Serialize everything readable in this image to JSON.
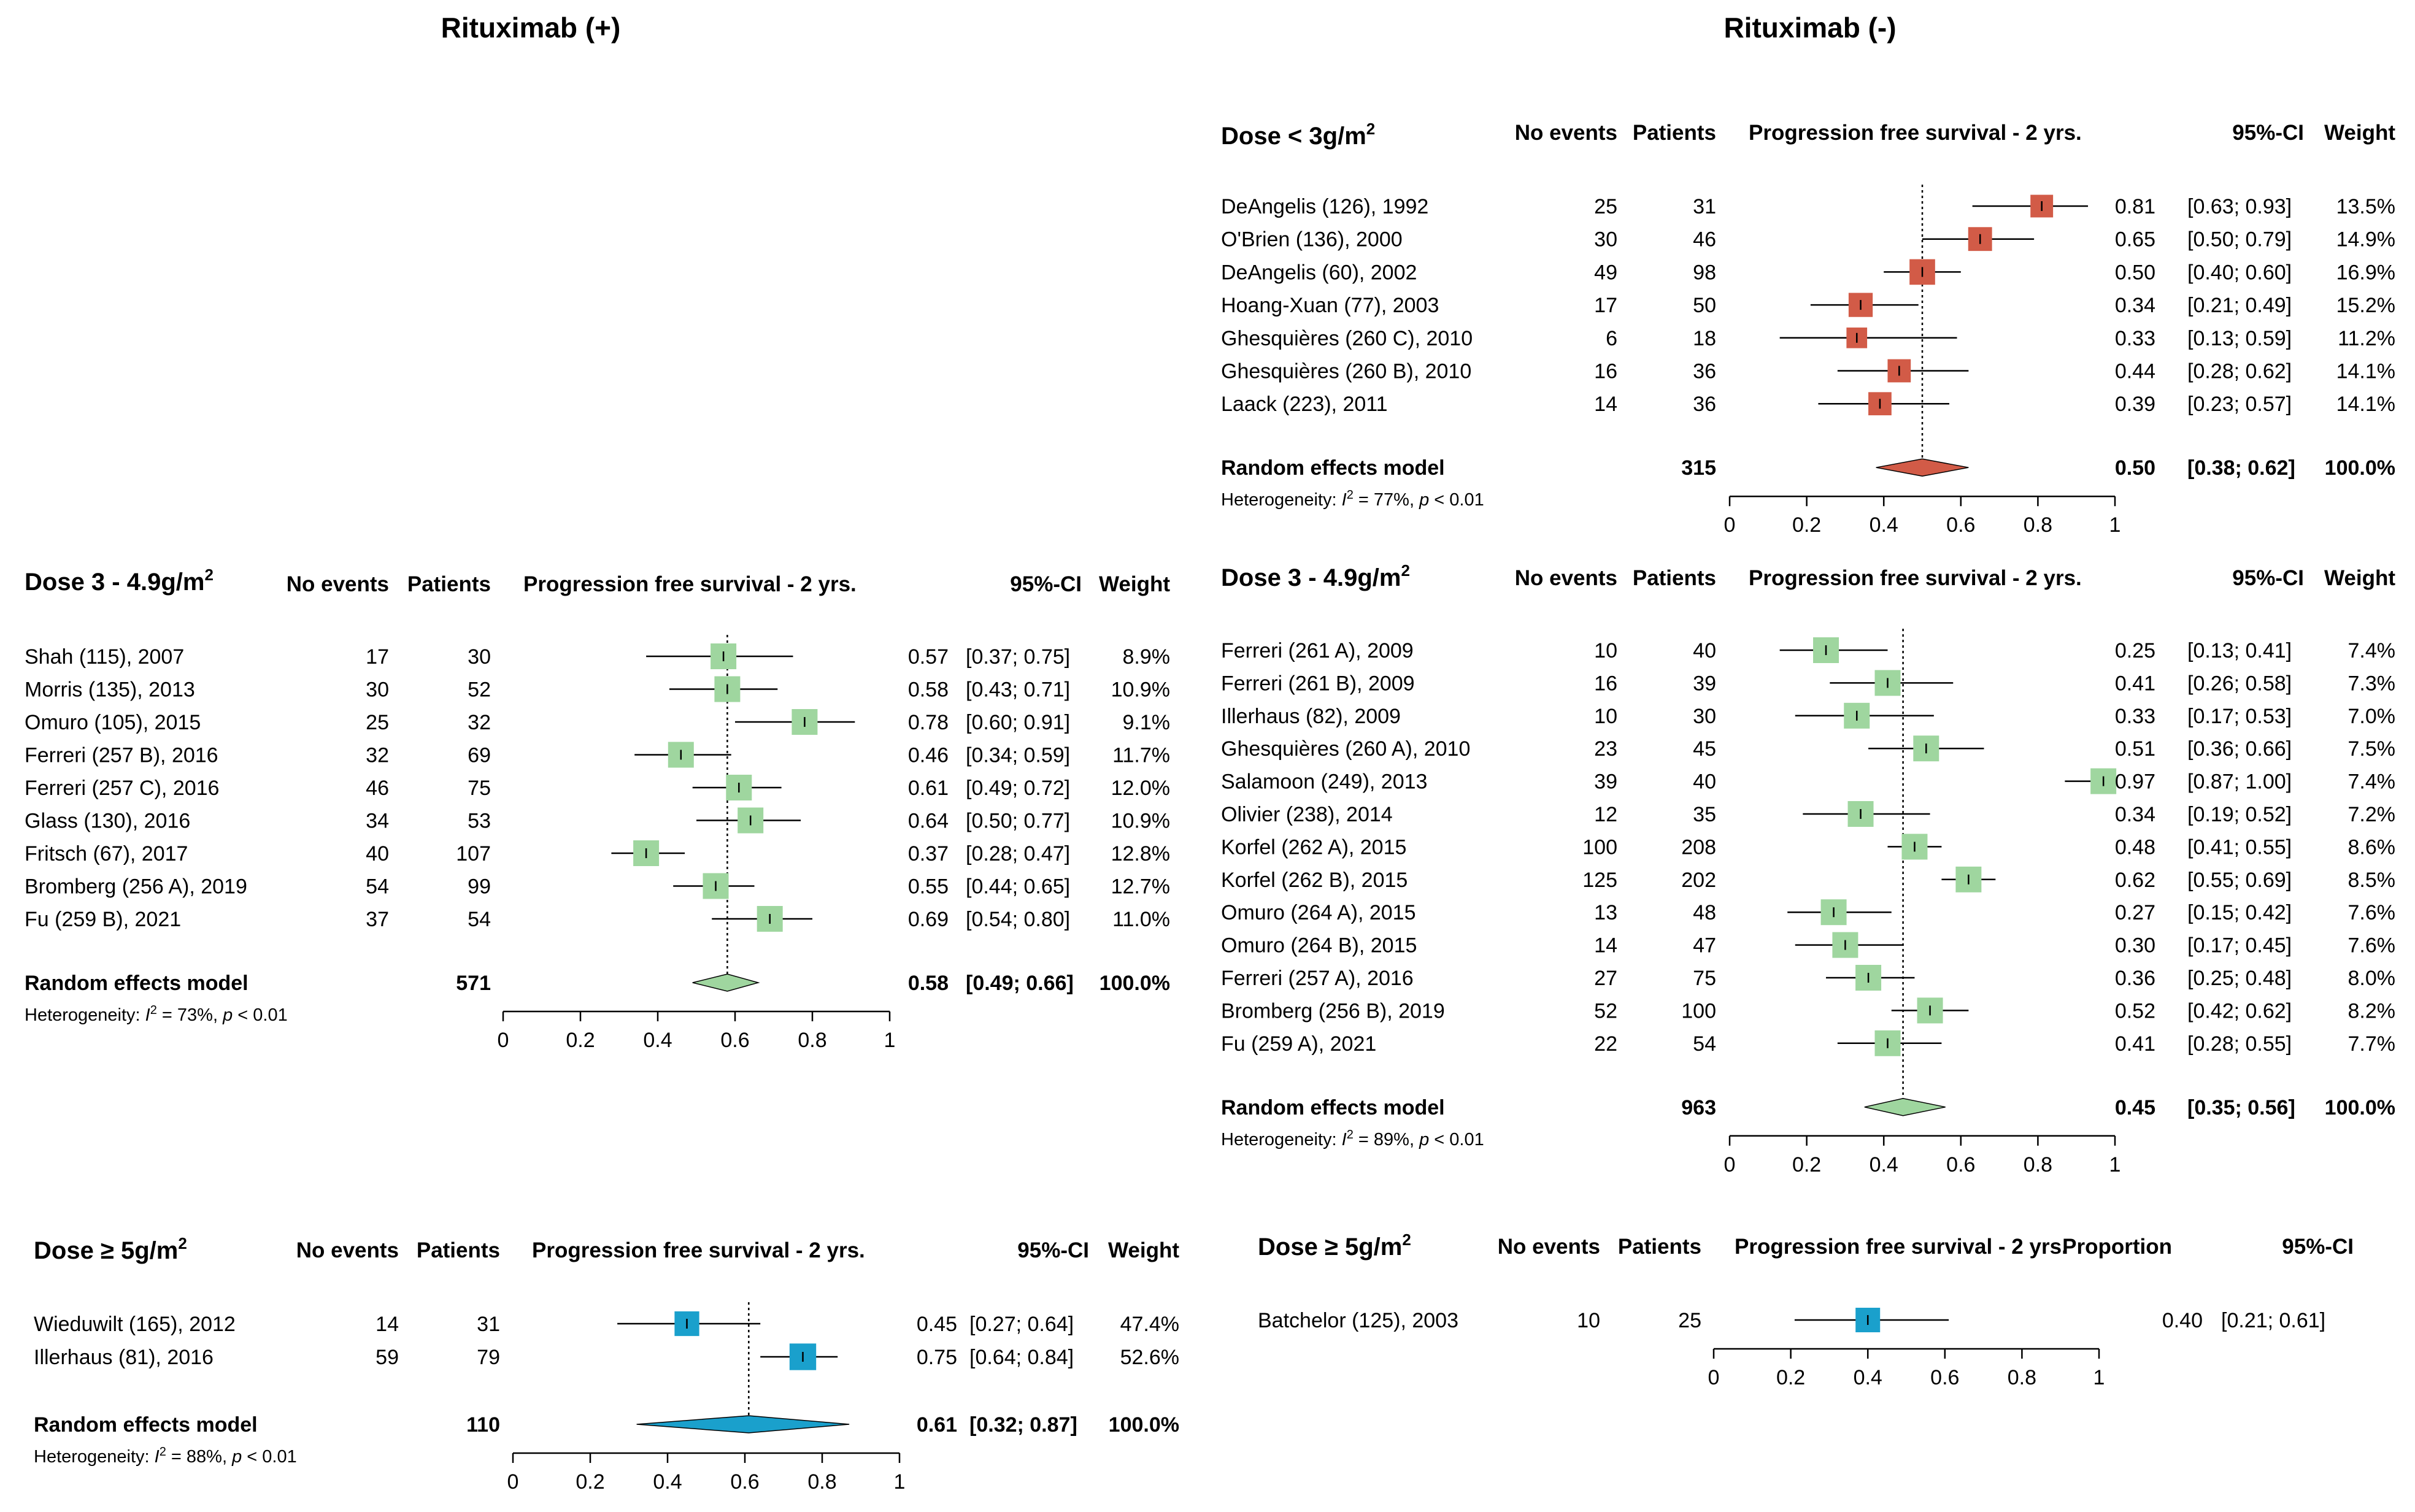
{
  "titles": {
    "left": "Rituximab (+)",
    "right": "Rituximab (-)"
  },
  "colors": {
    "red": "#d25b47",
    "green": "#9fd69f",
    "blue": "#1aa0cc",
    "red_diamond": "#d25b47",
    "green_diamond": "#9fd69f",
    "blue_diamond": "#1aa0cc"
  },
  "chart_data": [
    {
      "id": "plot-r-minus-low",
      "type": "forest",
      "title": "Dose < 3g/m",
      "title_sup": "2",
      "columns": {
        "events": "No events",
        "patients": "Patients",
        "plot": "Progression free survival - 2 yrs.",
        "ci": "95%-CI",
        "weight": "Weight"
      },
      "color": "red",
      "summary_line": 0.5,
      "xlim": [
        0,
        1
      ],
      "ticks": [
        "0",
        "0.2",
        "0.4",
        "0.6",
        "0.8",
        "1"
      ],
      "studies": [
        {
          "label": "DeAngelis (126), 1992",
          "events": "25",
          "patients": "31",
          "est": 0.81,
          "lo": 0.63,
          "hi": 0.93,
          "est_text": "0.81",
          "ci_text": "[0.63; 0.93]",
          "weight_text": "13.5%",
          "w": 13.5
        },
        {
          "label": "O'Brien (136), 2000",
          "events": "30",
          "patients": "46",
          "est": 0.65,
          "lo": 0.5,
          "hi": 0.79,
          "est_text": "0.65",
          "ci_text": "[0.50; 0.79]",
          "weight_text": "14.9%",
          "w": 14.9
        },
        {
          "label": "DeAngelis (60), 2002",
          "events": "49",
          "patients": "98",
          "est": 0.5,
          "lo": 0.4,
          "hi": 0.6,
          "est_text": "0.50",
          "ci_text": "[0.40; 0.60]",
          "weight_text": "16.9%",
          "w": 16.9
        },
        {
          "label": "Hoang-Xuan (77), 2003",
          "events": "17",
          "patients": "50",
          "est": 0.34,
          "lo": 0.21,
          "hi": 0.49,
          "est_text": "0.34",
          "ci_text": "[0.21; 0.49]",
          "weight_text": "15.2%",
          "w": 15.2
        },
        {
          "label": "Ghesquières (260 C), 2010",
          "events": "6",
          "patients": "18",
          "est": 0.33,
          "lo": 0.13,
          "hi": 0.59,
          "est_text": "0.33",
          "ci_text": "[0.13; 0.59]",
          "weight_text": "11.2%",
          "w": 11.2
        },
        {
          "label": "Ghesquières (260 B), 2010",
          "events": "16",
          "patients": "36",
          "est": 0.44,
          "lo": 0.28,
          "hi": 0.62,
          "est_text": "0.44",
          "ci_text": "[0.28; 0.62]",
          "weight_text": "14.1%",
          "w": 14.1
        },
        {
          "label": "Laack (223), 2011",
          "events": "14",
          "patients": "36",
          "est": 0.39,
          "lo": 0.23,
          "hi": 0.57,
          "est_text": "0.39",
          "ci_text": "[0.23; 0.57]",
          "weight_text": "14.1%",
          "w": 14.1
        }
      ],
      "model": {
        "label": "Random effects model",
        "patients": "315",
        "est": 0.5,
        "lo": 0.38,
        "hi": 0.62,
        "est_text": "0.50",
        "ci_text": "[0.38; 0.62]",
        "weight_text": "100.0%"
      },
      "heterogeneity": {
        "prefix": "Heterogeneity: ",
        "i2": "I",
        "sup": "2",
        "rest": " = 77%, ",
        "p": "p",
        "prest": " < 0.01"
      }
    },
    {
      "id": "plot-r-plus-mid",
      "type": "forest",
      "title": "Dose 3 - 4.9g/m",
      "title_sup": "2",
      "columns": {
        "events": "No events",
        "patients": "Patients",
        "plot": "Progression free survival - 2 yrs.",
        "ci": "95%-CI",
        "weight": "Weight"
      },
      "color": "green",
      "summary_line": 0.58,
      "xlim": [
        0,
        1
      ],
      "ticks": [
        "0",
        "0.2",
        "0.4",
        "0.6",
        "0.8",
        "1"
      ],
      "studies": [
        {
          "label": "Shah (115), 2007",
          "events": "17",
          "patients": "30",
          "est": 0.57,
          "lo": 0.37,
          "hi": 0.75,
          "est_text": "0.57",
          "ci_text": "[0.37; 0.75]",
          "weight_text": "8.9%",
          "w": 8.9
        },
        {
          "label": "Morris (135), 2013",
          "events": "30",
          "patients": "52",
          "est": 0.58,
          "lo": 0.43,
          "hi": 0.71,
          "est_text": "0.58",
          "ci_text": "[0.43; 0.71]",
          "weight_text": "10.9%",
          "w": 10.9
        },
        {
          "label": "Omuro (105), 2015",
          "events": "25",
          "patients": "32",
          "est": 0.78,
          "lo": 0.6,
          "hi": 0.91,
          "est_text": "0.78",
          "ci_text": "[0.60; 0.91]",
          "weight_text": "9.1%",
          "w": 9.1
        },
        {
          "label": "Ferreri (257 B), 2016",
          "events": "32",
          "patients": "69",
          "est": 0.46,
          "lo": 0.34,
          "hi": 0.59,
          "est_text": "0.46",
          "ci_text": "[0.34; 0.59]",
          "weight_text": "11.7%",
          "w": 11.7
        },
        {
          "label": "Ferreri (257 C), 2016",
          "events": "46",
          "patients": "75",
          "est": 0.61,
          "lo": 0.49,
          "hi": 0.72,
          "est_text": "0.61",
          "ci_text": "[0.49; 0.72]",
          "weight_text": "12.0%",
          "w": 12.0
        },
        {
          "label": "Glass (130), 2016",
          "events": "34",
          "patients": "53",
          "est": 0.64,
          "lo": 0.5,
          "hi": 0.77,
          "est_text": "0.64",
          "ci_text": "[0.50; 0.77]",
          "weight_text": "10.9%",
          "w": 10.9
        },
        {
          "label": "Fritsch (67), 2017",
          "events": "40",
          "patients": "107",
          "est": 0.37,
          "lo": 0.28,
          "hi": 0.47,
          "est_text": "0.37",
          "ci_text": "[0.28; 0.47]",
          "weight_text": "12.8%",
          "w": 12.8
        },
        {
          "label": "Bromberg (256 A), 2019",
          "events": "54",
          "patients": "99",
          "est": 0.55,
          "lo": 0.44,
          "hi": 0.65,
          "est_text": "0.55",
          "ci_text": "[0.44; 0.65]",
          "weight_text": "12.7%",
          "w": 12.7
        },
        {
          "label": "Fu (259  B), 2021",
          "events": "37",
          "patients": "54",
          "est": 0.69,
          "lo": 0.54,
          "hi": 0.8,
          "est_text": "0.69",
          "ci_text": "[0.54; 0.80]",
          "weight_text": "11.0%",
          "w": 11.0
        }
      ],
      "model": {
        "label": "Random effects model",
        "patients": "571",
        "est": 0.58,
        "lo": 0.49,
        "hi": 0.66,
        "est_text": "0.58",
        "ci_text": "[0.49; 0.66]",
        "weight_text": "100.0%"
      },
      "heterogeneity": {
        "prefix": "Heterogeneity: ",
        "i2": "I",
        "sup": "2",
        "rest": " = 73%, ",
        "p": "p",
        "prest": " < 0.01"
      }
    },
    {
      "id": "plot-r-minus-mid",
      "type": "forest",
      "title": "Dose 3 - 4.9g/m",
      "title_sup": "2",
      "columns": {
        "events": "No events",
        "patients": "Patients",
        "plot": "Progression free survival - 2 yrs.",
        "ci": "95%-CI",
        "weight": "Weight"
      },
      "color": "green",
      "summary_line": 0.45,
      "xlim": [
        0,
        1
      ],
      "ticks": [
        "0",
        "0.2",
        "0.4",
        "0.6",
        "0.8",
        "1"
      ],
      "studies": [
        {
          "label": "Ferreri (261 A), 2009",
          "events": "10",
          "patients": "40",
          "est": 0.25,
          "lo": 0.13,
          "hi": 0.41,
          "est_text": "0.25",
          "ci_text": "[0.13; 0.41]",
          "weight_text": "7.4%",
          "w": 7.4
        },
        {
          "label": "Ferreri (261 B), 2009",
          "events": "16",
          "patients": "39",
          "est": 0.41,
          "lo": 0.26,
          "hi": 0.58,
          "est_text": "0.41",
          "ci_text": "[0.26; 0.58]",
          "weight_text": "7.3%",
          "w": 7.3
        },
        {
          "label": "Illerhaus (82), 2009",
          "events": "10",
          "patients": "30",
          "est": 0.33,
          "lo": 0.17,
          "hi": 0.53,
          "est_text": "0.33",
          "ci_text": "[0.17; 0.53]",
          "weight_text": "7.0%",
          "w": 7.0
        },
        {
          "label": "Ghesquières (260 A), 2010",
          "events": "23",
          "patients": "45",
          "est": 0.51,
          "lo": 0.36,
          "hi": 0.66,
          "est_text": "0.51",
          "ci_text": "[0.36; 0.66]",
          "weight_text": "7.5%",
          "w": 7.5
        },
        {
          "label": "Salamoon (249), 2013",
          "events": "39",
          "patients": "40",
          "est": 0.97,
          "lo": 0.87,
          "hi": 1.0,
          "est_text": "0.97",
          "ci_text": "[0.87; 1.00]",
          "weight_text": "7.4%",
          "w": 7.4
        },
        {
          "label": "Olivier (238), 2014",
          "events": "12",
          "patients": "35",
          "est": 0.34,
          "lo": 0.19,
          "hi": 0.52,
          "est_text": "0.34",
          "ci_text": "[0.19; 0.52]",
          "weight_text": "7.2%",
          "w": 7.2
        },
        {
          "label": "Korfel (262 A), 2015",
          "events": "100",
          "patients": "208",
          "est": 0.48,
          "lo": 0.41,
          "hi": 0.55,
          "est_text": "0.48",
          "ci_text": "[0.41; 0.55]",
          "weight_text": "8.6%",
          "w": 8.6
        },
        {
          "label": "Korfel (262 B), 2015",
          "events": "125",
          "patients": "202",
          "est": 0.62,
          "lo": 0.55,
          "hi": 0.69,
          "est_text": "0.62",
          "ci_text": "[0.55; 0.69]",
          "weight_text": "8.5%",
          "w": 8.5
        },
        {
          "label": "Omuro (264 A), 2015",
          "events": "13",
          "patients": "48",
          "est": 0.27,
          "lo": 0.15,
          "hi": 0.42,
          "est_text": "0.27",
          "ci_text": "[0.15; 0.42]",
          "weight_text": "7.6%",
          "w": 7.6
        },
        {
          "label": "Omuro (264 B), 2015",
          "events": "14",
          "patients": "47",
          "est": 0.3,
          "lo": 0.17,
          "hi": 0.45,
          "est_text": "0.30",
          "ci_text": "[0.17; 0.45]",
          "weight_text": "7.6%",
          "w": 7.6
        },
        {
          "label": "Ferreri (257 A), 2016",
          "events": "27",
          "patients": "75",
          "est": 0.36,
          "lo": 0.25,
          "hi": 0.48,
          "est_text": "0.36",
          "ci_text": "[0.25; 0.48]",
          "weight_text": "8.0%",
          "w": 8.0
        },
        {
          "label": "Bromberg (256 B), 2019",
          "events": "52",
          "patients": "100",
          "est": 0.52,
          "lo": 0.42,
          "hi": 0.62,
          "est_text": "0.52",
          "ci_text": "[0.42; 0.62]",
          "weight_text": "8.2%",
          "w": 8.2
        },
        {
          "label": "Fu (259 A), 2021",
          "events": "22",
          "patients": "54",
          "est": 0.41,
          "lo": 0.28,
          "hi": 0.55,
          "est_text": "0.41",
          "ci_text": "[0.28; 0.55]",
          "weight_text": "7.7%",
          "w": 7.7
        }
      ],
      "model": {
        "label": "Random effects model",
        "patients": "963",
        "est": 0.45,
        "lo": 0.35,
        "hi": 0.56,
        "est_text": "0.45",
        "ci_text": "[0.35; 0.56]",
        "weight_text": "100.0%"
      },
      "heterogeneity": {
        "prefix": "Heterogeneity: ",
        "i2": "I",
        "sup": "2",
        "rest": " = 89%, ",
        "p": "p",
        "prest": " < 0.01"
      }
    },
    {
      "id": "plot-r-plus-high",
      "type": "forest",
      "title": "Dose ≥ 5g/m",
      "title_sup": "2",
      "columns": {
        "events": "No events",
        "patients": "Patients",
        "plot": "Progression free survival - 2 yrs.",
        "ci": "95%-CI",
        "weight": "Weight"
      },
      "color": "blue",
      "summary_line": 0.61,
      "xlim": [
        0,
        1
      ],
      "ticks": [
        "0",
        "0.2",
        "0.4",
        "0.6",
        "0.8",
        "1"
      ],
      "studies": [
        {
          "label": "Wieduwilt (165), 2012",
          "events": "14",
          "patients": "31",
          "est": 0.45,
          "lo": 0.27,
          "hi": 0.64,
          "est_text": "0.45",
          "ci_text": "[0.27; 0.64]",
          "weight_text": "47.4%",
          "w": 47.4
        },
        {
          "label": "Illerhaus (81), 2016",
          "events": "59",
          "patients": "79",
          "est": 0.75,
          "lo": 0.64,
          "hi": 0.84,
          "est_text": "0.75",
          "ci_text": "[0.64; 0.84]",
          "weight_text": "52.6%",
          "w": 52.6
        }
      ],
      "model": {
        "label": "Random effects model",
        "patients": "110",
        "est": 0.61,
        "lo": 0.32,
        "hi": 0.87,
        "est_text": "0.61",
        "ci_text": "[0.32; 0.87]",
        "weight_text": "100.0%"
      },
      "heterogeneity": {
        "prefix": "Heterogeneity: ",
        "i2": "I",
        "sup": "2",
        "rest": " = 88%, ",
        "p": "p",
        "prest": " < 0.01"
      }
    },
    {
      "id": "plot-r-minus-high",
      "type": "forest",
      "title": "Dose ≥ 5g/m",
      "title_sup": "2",
      "columns": {
        "events": "No events",
        "patients": "Patients",
        "plot": "Progression free survival - 2 yrs.",
        "proportion": "Proportion",
        "ci": "95%-CI"
      },
      "color": "blue",
      "xlim": [
        0,
        1
      ],
      "ticks": [
        "0",
        "0.2",
        "0.4",
        "0.6",
        "0.8",
        "1"
      ],
      "studies": [
        {
          "label": "Batchelor (125), 2003",
          "events": "10",
          "patients": "25",
          "est": 0.4,
          "lo": 0.21,
          "hi": 0.61,
          "est_text": "0.40",
          "ci_text": "[0.21; 0.61]",
          "w": 100
        }
      ]
    }
  ]
}
